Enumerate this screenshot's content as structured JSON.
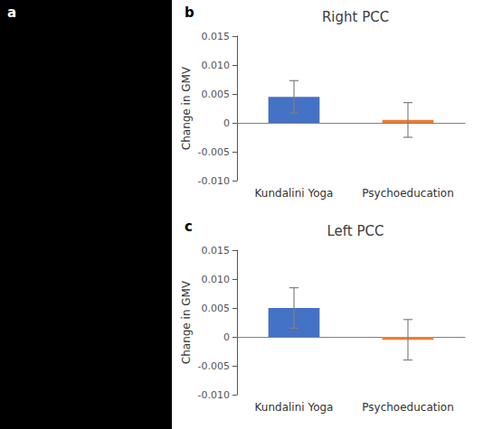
{
  "chart_data": [
    {
      "type": "bar",
      "title": "Right PCC",
      "categories": [
        "Kundalini Yoga",
        "Psychoeducation"
      ],
      "values": [
        0.0045,
        0.0005
      ],
      "errors": [
        0.0028,
        0.003
      ],
      "colors": [
        "#4472C4",
        "#ED7D31"
      ],
      "ylabel": "Change in GMV",
      "ylim": [
        -0.01,
        0.015
      ],
      "yticks": [
        {
          "value": -0.01,
          "label": "-0.010"
        },
        -0.005,
        0,
        0.005,
        {
          "value": 0.01,
          "label": "0.010"
        },
        0.015
      ],
      "grid": false,
      "annotations": [
        "a",
        "b"
      ]
    },
    {
      "type": "bar",
      "title": "Left PCC",
      "categories": [
        "Kundalini Yoga",
        "Psychoeducation"
      ],
      "values": [
        0.005,
        -0.0005
      ],
      "errors": [
        0.0035,
        0.0035
      ],
      "colors": [
        "#4472C4",
        "#ED7D31"
      ],
      "ylabel": "Change in GMV",
      "ylim": [
        -0.01,
        0.015
      ],
      "yticks": [
        {
          "value": -0.01,
          "label": "-0.010"
        },
        -0.005,
        0,
        0.005,
        {
          "value": 0.01,
          "label": "0.010"
        },
        0.015
      ],
      "grid": false,
      "annotations": [
        "c"
      ]
    }
  ]
}
